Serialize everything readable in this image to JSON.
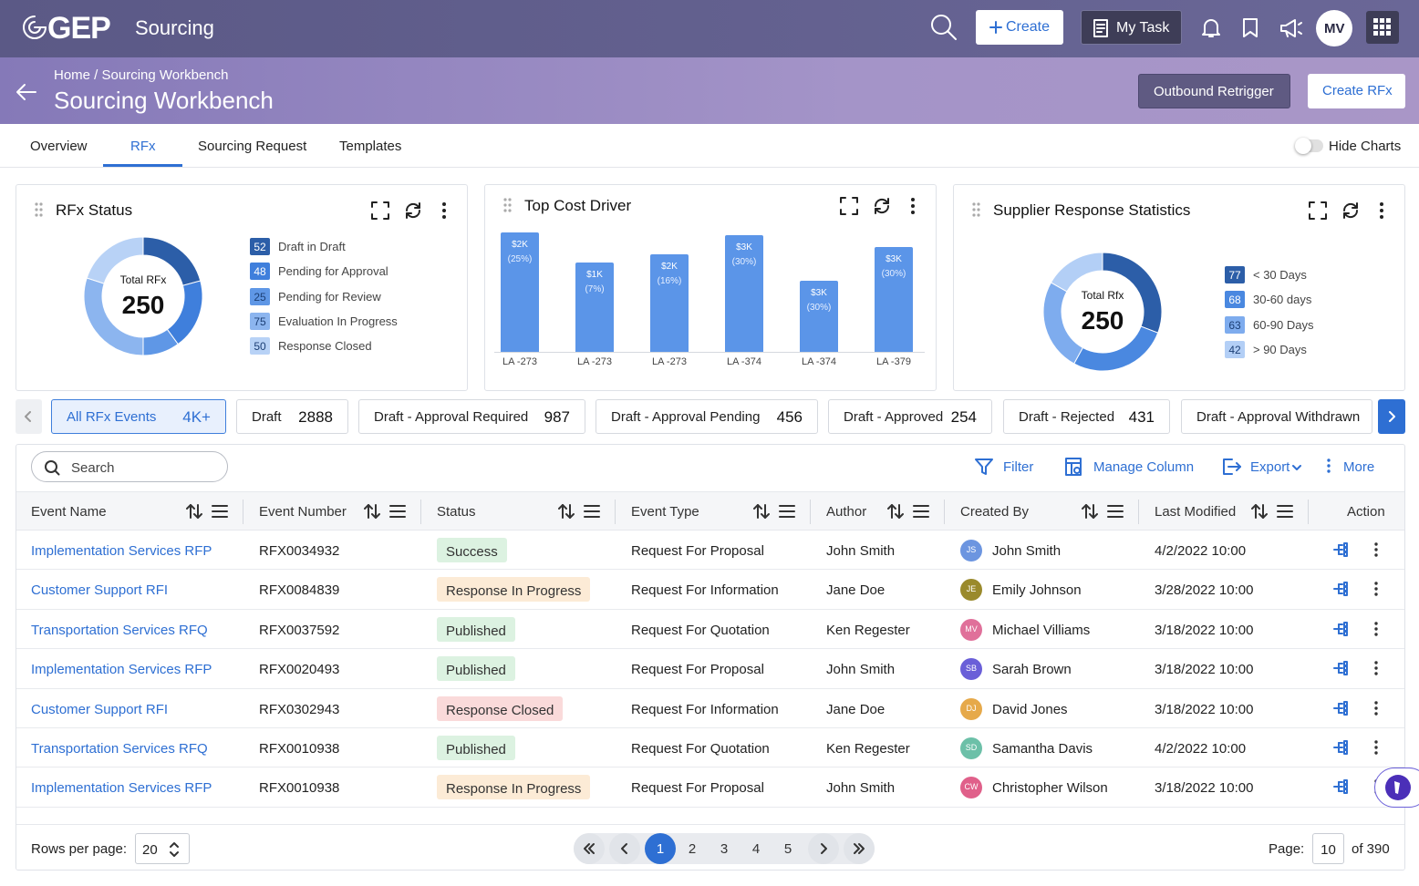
{
  "header": {
    "logo": "GEP",
    "app": "Sourcing",
    "create": "Create",
    "my_task": "My Task",
    "avatar": "MV"
  },
  "subheader": {
    "breadcrumb": "Home / Sourcing Workbench",
    "title": "Sourcing Workbench",
    "outbound": "Outbound Retrigger",
    "create_rfx": "Create RFx"
  },
  "tabs": {
    "items": [
      "Overview",
      "RFx",
      "Sourcing Request",
      "Templates"
    ],
    "active": 1,
    "hide_charts": "Hide Charts"
  },
  "rfx_status": {
    "title": "RFx Status",
    "center_label": "Total RFx",
    "total": "250",
    "legend": [
      {
        "count": 52,
        "label": "Draft in Draft",
        "color": "#2c5ea8"
      },
      {
        "count": 48,
        "label": "Pending for Approval",
        "color": "#3f7fdc"
      },
      {
        "count": 25,
        "label": "Pending for Review",
        "color": "#5f97e6"
      },
      {
        "count": 75,
        "label": "Evaluation In Progress",
        "color": "#8cb5ef"
      },
      {
        "count": 50,
        "label": "Response Closed",
        "color": "#b8d2f6"
      }
    ]
  },
  "cost_driver": {
    "title": "Top Cost Driver",
    "color": "#5b95e8",
    "bars": [
      {
        "category": "LA -273",
        "amount": "$2K",
        "share": "(25%)",
        "value": 131
      },
      {
        "category": "LA -273",
        "amount": "$1K",
        "share": "(7%)",
        "value": 98
      },
      {
        "category": "LA -273",
        "amount": "$2K",
        "share": "(16%)",
        "value": 107
      },
      {
        "category": "LA -374",
        "amount": "$3K",
        "share": "(30%)",
        "value": 128
      },
      {
        "category": "LA -374",
        "amount": "$3K",
        "share": "(30%)",
        "value": 78
      },
      {
        "category": "LA -379",
        "amount": "$3K",
        "share": "(30%)",
        "value": 115
      }
    ]
  },
  "supplier_stats": {
    "title": "Supplier Response Statistics",
    "center_label": "Total Rfx",
    "total": "250",
    "legend": [
      {
        "count": 77,
        "label": "< 30 Days",
        "color": "#2c5ea8"
      },
      {
        "count": 68,
        "label": "30-60 days",
        "color": "#4a88e0"
      },
      {
        "count": 63,
        "label": "60-90 Days",
        "color": "#7eacee"
      },
      {
        "count": 42,
        "label": "> 90 Days",
        "color": "#b3cff6"
      }
    ]
  },
  "filters": {
    "active": 0,
    "items": [
      {
        "label": "All RFx Events",
        "count": "4K+"
      },
      {
        "label": "Draft",
        "count": "2888"
      },
      {
        "label": "Draft - Approval Required",
        "count": "987"
      },
      {
        "label": "Draft - Approval Pending",
        "count": "456"
      },
      {
        "label": "Draft - Approved",
        "count": "254"
      },
      {
        "label": "Draft - Rejected",
        "count": "431"
      },
      {
        "label": "Draft - Approval Withdrawn"
      }
    ]
  },
  "toolbar": {
    "search": "Search",
    "filter": "Filter",
    "manage_column": "Manage Column",
    "export": "Export",
    "more": "More"
  },
  "table": {
    "columns": [
      "Event Name",
      "Event Number",
      "Status",
      "Event Type",
      "Author",
      "Created By",
      "Last Modified",
      "Action"
    ],
    "rows": [
      {
        "name": "Implementation Services RFP",
        "number": "RFX0034932",
        "status": "Success",
        "status_color": "#dcf2e1",
        "type": "Request For Proposal",
        "author": "John Smith",
        "initials": "JS",
        "avatar_color": "#6c95e0",
        "created_by": "John Smith",
        "modified": "4/2/2022 10:00"
      },
      {
        "name": "Customer Support RFI",
        "number": "RFX0084839",
        "status": "Response In Progress",
        "status_color": "#fcebd6",
        "type": "Request For Information",
        "author": "Jane Doe",
        "initials": "JE",
        "avatar_color": "#9a8a2c",
        "created_by": "Emily Johnson",
        "modified": "3/28/2022 10:00"
      },
      {
        "name": "Transportation Services RFQ",
        "number": "RFX0037592",
        "status": "Published",
        "status_color": "#dcf2e1",
        "type": "Request For Quotation",
        "author": "Ken Regester",
        "initials": "MV",
        "avatar_color": "#e0709a",
        "created_by": "Michael Villiams",
        "modified": "3/18/2022 10:00"
      },
      {
        "name": "Implementation Services RFP",
        "number": "RFX0020493",
        "status": "Published",
        "status_color": "#dcf2e1",
        "type": "Request For Proposal",
        "author": "John Smith",
        "initials": "SB",
        "avatar_color": "#6a5fd8",
        "created_by": "Sarah Brown",
        "modified": "3/18/2022 10:00"
      },
      {
        "name": "Customer Support RFI",
        "number": "RFX0302943",
        "status": "Response Closed",
        "status_color": "#fadada",
        "type": "Request For Information",
        "author": "Jane Doe",
        "initials": "DJ",
        "avatar_color": "#e6a94a",
        "created_by": "David Jones",
        "modified": "3/18/2022 10:00"
      },
      {
        "name": "Transportation Services RFQ",
        "number": "RFX0010938",
        "status": "Published",
        "status_color": "#dcf2e1",
        "type": "Request For Quotation",
        "author": "Ken Regester",
        "initials": "SD",
        "avatar_color": "#6cc0a8",
        "created_by": "Samantha Davis",
        "modified": "4/2/2022 10:00"
      },
      {
        "name": "Implementation Services RFP",
        "number": "RFX0010938",
        "status": "Response In Progress",
        "status_color": "#fcebd6",
        "type": "Request For Proposal",
        "author": "John Smith",
        "initials": "CW",
        "avatar_color": "#e0608a",
        "created_by": "Christopher Wilson",
        "modified": "3/18/2022 10:00"
      }
    ]
  },
  "pagination": {
    "rows_label": "Rows per page:",
    "rows_value": "20",
    "pages": [
      "1",
      "2",
      "3",
      "4",
      "5"
    ],
    "active": 0,
    "page_label": "Page:",
    "page_value": "10",
    "of_label": "of 390"
  }
}
